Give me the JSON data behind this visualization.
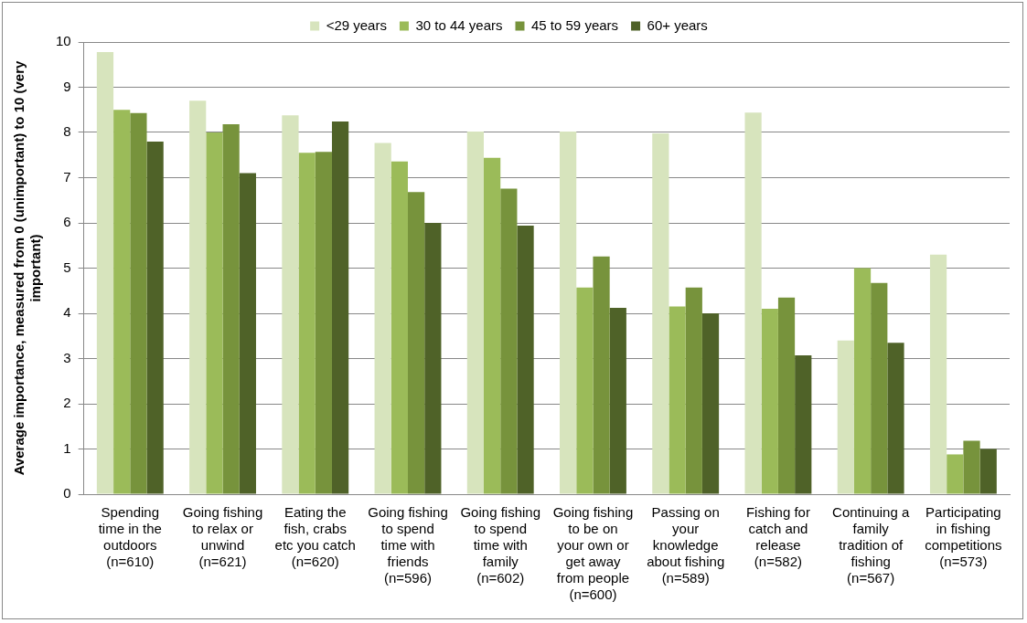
{
  "chart_data": {
    "type": "bar",
    "ylabel": "Average importance, measured from 0 (unimportant) to 10 (very\nimportant)",
    "categories": [
      "Spending\ntime in the\noutdoors\n(n=610)",
      "Going fishing\nto relax or\nunwind\n(n=621)",
      "Eating the\nfish, crabs\netc you catch\n(n=620)",
      "Going fishing\nto spend\ntime with\nfriends\n(n=596)",
      "Going fishing\nto spend\ntime with\nfamily\n(n=602)",
      "Going fishing\nto be on\nyour own or\nget away\nfrom people\n(n=600)",
      "Passing on\nyour\nknowledge\nabout fishing\n(n=589)",
      "Fishing for\ncatch and\nrelease\n(n=582)",
      "Continuing a\nfamily\ntradition of\nfishing\n(n=567)",
      "Participating\nin fishing\ncompetitions\n(n=573)"
    ],
    "series": [
      {
        "name": "<29 years",
        "color": "#d7e4bd",
        "values": [
          9.78,
          8.7,
          8.38,
          7.77,
          8.02,
          8.02,
          7.98,
          8.44,
          3.4,
          5.3
        ]
      },
      {
        "name": "30 to 44 years",
        "color": "#9bbb59",
        "values": [
          8.5,
          8.0,
          7.55,
          7.36,
          7.44,
          4.57,
          4.15,
          4.1,
          5.0,
          0.88
        ]
      },
      {
        "name": "45 to 59 years",
        "color": "#77933c",
        "values": [
          8.43,
          8.18,
          7.57,
          6.68,
          6.76,
          5.26,
          4.57,
          4.35,
          4.67,
          1.18
        ]
      },
      {
        "name": "60+ years",
        "color": "#4f6228",
        "values": [
          7.8,
          7.1,
          8.24,
          6.0,
          5.94,
          4.12,
          4.0,
          3.07,
          3.35,
          1.0
        ]
      }
    ],
    "ylim": [
      0,
      10
    ],
    "yticks": [
      0,
      1,
      2,
      3,
      4,
      5,
      6,
      7,
      8,
      9,
      10
    ],
    "grid": "y",
    "legend": "top"
  }
}
